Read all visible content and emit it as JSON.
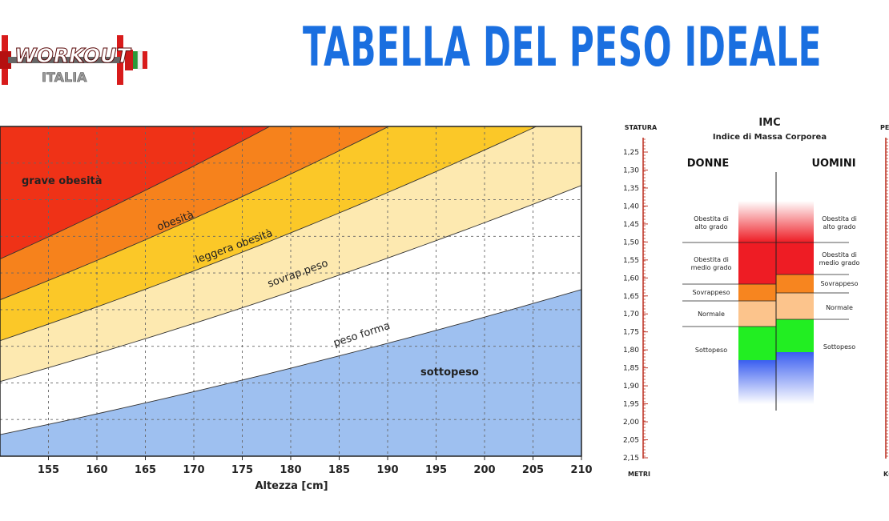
{
  "page": {
    "title": "TABELLA DEL PESO IDEALE"
  },
  "logo": {
    "text1": "WORKOUT",
    "text2": "ITALIA"
  },
  "chart_data": [
    {
      "type": "area",
      "xlabel": "Altezza [cm]",
      "ylabel": "",
      "x_ticks": [
        155,
        160,
        165,
        170,
        175,
        180,
        185,
        190,
        195,
        200,
        205,
        210
      ],
      "xlim": [
        150,
        210
      ],
      "boundaries_bmi": [
        18.5,
        25,
        30,
        35,
        40
      ],
      "zones": [
        {
          "name": "sottopeso",
          "color": "#9ec0f0"
        },
        {
          "name": "peso forma",
          "color": "#ffffff"
        },
        {
          "name": "sovrap.peso",
          "color": "#fde9b0"
        },
        {
          "name": "leggera obesità",
          "color": "#fbc828"
        },
        {
          "name": "obesità",
          "color": "#f6821c"
        },
        {
          "name": "grave obesità",
          "color": "#ef3217"
        }
      ],
      "grid": true
    },
    {
      "type": "table",
      "title": "IMC",
      "subtitle": "Indice di Massa Corporea",
      "left_scale_title": "STATURA",
      "left_scale_unit": "METRI",
      "right_scale_title": "PESO",
      "right_scale_unit": "KG",
      "stature_ticks": [
        "1,25",
        "1,30",
        "1,35",
        "1,40",
        "1,45",
        "1,50",
        "1,55",
        "1,60",
        "1,65",
        "1,70",
        "1,75",
        "1,80",
        "1,85",
        "1,90",
        "1,95",
        "2,00",
        "2,05",
        "2,15"
      ],
      "donne": {
        "label": "DONNE",
        "categories": [
          {
            "label": "Obestita di alto grado",
            "lines": [
              "Obestita di",
              "alto grado"
            ],
            "color": "#ee1c24"
          },
          {
            "label": "Obestita di medio grado",
            "lines": [
              "Obestita di",
              "medio grado"
            ],
            "color": "#f7851f"
          },
          {
            "label": "Sovrappeso",
            "lines": [
              "Sovrappeso"
            ],
            "color": "#fcc48c"
          },
          {
            "label": "Normale",
            "lines": [
              "Normale"
            ],
            "color": "#22ee22"
          },
          {
            "label": "Sottopeso",
            "lines": [
              "Sottopeso"
            ],
            "color": "#3a5ef0"
          }
        ]
      },
      "uomini": {
        "label": "UOMINI",
        "categories": [
          {
            "label": "Obestita di alto grado",
            "lines": [
              "Obestita di",
              "alto grado"
            ],
            "color": "#ee1c24"
          },
          {
            "label": "Obestita di medio grado",
            "lines": [
              "Obestita di",
              "medio grado"
            ],
            "color": "#f7851f"
          },
          {
            "label": "Sovrappeso",
            "lines": [
              "Sovrappeso"
            ],
            "color": "#fcc48c"
          },
          {
            "label": "Normale",
            "lines": [
              "Normale"
            ],
            "color": "#22ee22"
          },
          {
            "label": "Sottopeso",
            "lines": [
              "Sottopeso"
            ],
            "color": "#3a5ef0"
          }
        ]
      }
    }
  ]
}
